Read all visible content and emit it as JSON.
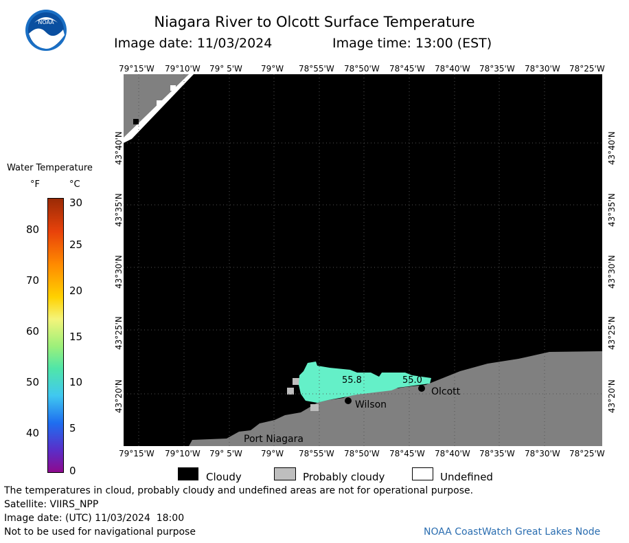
{
  "header": {
    "title": "Niagara River to Olcott Surface Temperature",
    "image_date": "Image date: 11/03/2024",
    "image_time": "Image time: 13:00 (EST)"
  },
  "logo": {
    "text": "NOAA",
    "icon": "noaa-logo-icon"
  },
  "colorbar": {
    "title": "Water Temperature",
    "unit_f": "°F",
    "unit_c": "°C",
    "f_ticks": [
      "80",
      "70",
      "60",
      "50",
      "40"
    ],
    "c_ticks": [
      "30",
      "25",
      "20",
      "15",
      "10",
      "5",
      "0"
    ]
  },
  "map": {
    "longitude_labels": [
      "79°15'W",
      "79°10'W",
      "79° 5'W",
      "79°W",
      "78°55'W",
      "78°50'W",
      "78°45'W",
      "78°40'W",
      "78°35'W",
      "78°30'W",
      "78°25'W"
    ],
    "latitude_labels": [
      "43°40'N",
      "43°35'N",
      "43°30'N",
      "43°25'N",
      "43°20'N"
    ],
    "places": {
      "wilson": "Wilson",
      "olcott": "Olcott",
      "port_niagara": "Port Niagara"
    },
    "temperature_readings": [
      "55.8",
      "55.0"
    ],
    "colors": {
      "cloudy": "#000000",
      "land": "#808080",
      "probably_cloudy": "#bebebe",
      "water_temp": "#64f0c8"
    }
  },
  "legend": {
    "cloudy": "Cloudy",
    "probably_cloudy": "Probably cloudy",
    "undefined": "Undefined"
  },
  "footer": {
    "disclaimer": "The temperatures in cloud, probably cloudy and undefined areas are not for operational purpose.",
    "satellite": "Satellite: VIIRS_NPP",
    "utc_date": "Image date: (UTC) 11/03/2024  18:00",
    "navigation": "Not to be used for navigational purpose",
    "credit": "NOAA CoastWatch Great Lakes Node"
  }
}
